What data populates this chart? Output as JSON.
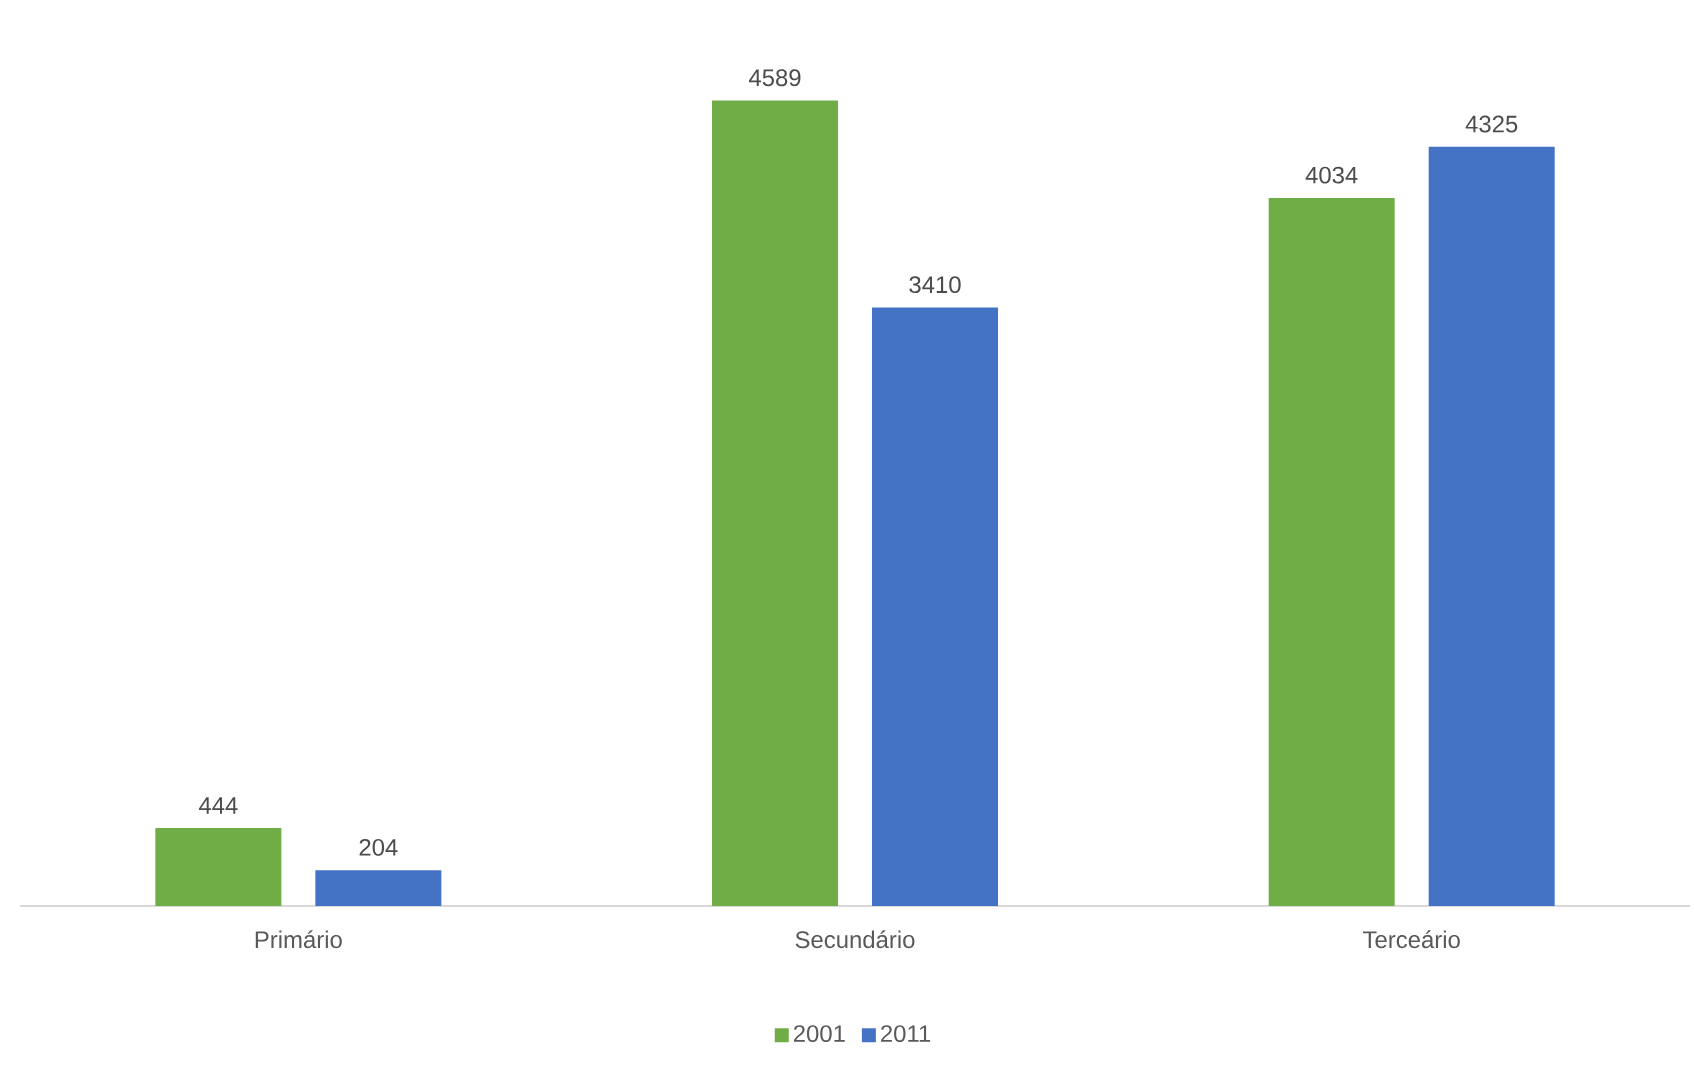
{
  "chart_data": {
    "type": "bar",
    "categories": [
      "Primário",
      "Secundário",
      "Terceário"
    ],
    "series": [
      {
        "name": "2001",
        "color": "#70ad47",
        "values": [
          444,
          4589,
          4034
        ]
      },
      {
        "name": "2011",
        "color": "#4472c4",
        "values": [
          204,
          3410,
          4325
        ]
      }
    ],
    "data_labels": true,
    "legend": "bottom"
  }
}
